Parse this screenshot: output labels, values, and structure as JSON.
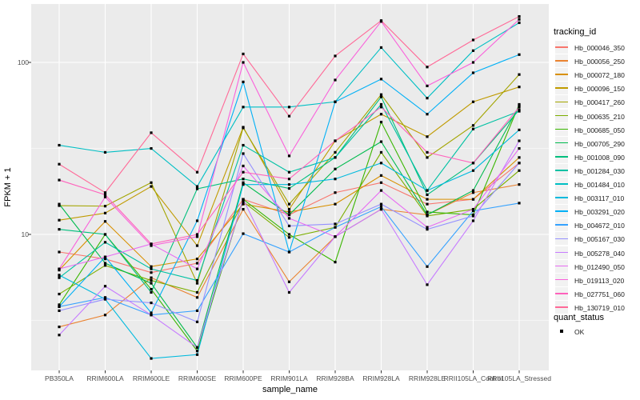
{
  "chart_data": {
    "type": "line",
    "title": "",
    "xlabel": "sample_name",
    "ylabel": "FPKM + 1",
    "y_scale": "log10",
    "y_ticks": [
      {
        "value": 10,
        "label": "10"
      },
      {
        "value": 100,
        "label": "100"
      }
    ],
    "y_minor_gridlines": [
      3.162,
      31.62
    ],
    "ylim": [
      1.6,
      218
    ],
    "grid": true,
    "panel_bg": "#ebebeb",
    "grid_color": "#ffffff",
    "point_color": "#000000",
    "categories": [
      "PB350LA",
      "RRIM600LA",
      "RRIM600LE",
      "RRIM600SE",
      "RRIM600PE",
      "RRIM901LA",
      "RRIM928BA",
      "RRIM928LA",
      "RRIM928LE",
      "RRII105LA_Control",
      "RRII105LA_Stressed"
    ],
    "series": [
      {
        "name": "Hb_000046_350",
        "color": "#F8766D",
        "values": [
          7.9,
          7.2,
          6.0,
          6.8,
          16,
          13,
          17.5,
          20,
          15,
          16,
          26
        ]
      },
      {
        "name": "Hb_000056_250",
        "color": "#EA8331",
        "values": [
          2.9,
          3.4,
          5.6,
          4.3,
          14,
          5.3,
          9.7,
          14,
          13,
          17.5,
          19.5
        ]
      },
      {
        "name": "Hb_000072_180",
        "color": "#D89000",
        "values": [
          6.2,
          11.9,
          6.5,
          7.2,
          15,
          13.5,
          15,
          22,
          16,
          16,
          28
        ]
      },
      {
        "name": "Hb_000096_150",
        "color": "#C09B00",
        "values": [
          12.1,
          13.3,
          19,
          8.6,
          42,
          14,
          35,
          50,
          37,
          59,
          72
        ]
      },
      {
        "name": "Hb_000417_260",
        "color": "#A3A500",
        "values": [
          14.7,
          14.6,
          20,
          5.2,
          41.6,
          15,
          30,
          65,
          28,
          43,
          85
        ]
      },
      {
        "name": "Hb_000635_210",
        "color": "#7CAE00",
        "values": [
          4.5,
          6.6,
          5.4,
          4.6,
          15.5,
          9.6,
          11,
          30,
          12.8,
          14,
          23.5
        ]
      },
      {
        "name": "Hb_000685_050",
        "color": "#39B600",
        "values": [
          3.9,
          10,
          4.8,
          2.1,
          16,
          10,
          6.9,
          45,
          13.5,
          13,
          57
        ]
      },
      {
        "name": "Hb_000705_290",
        "color": "#00BB4E",
        "values": [
          15,
          6.8,
          5.2,
          2.2,
          20,
          13,
          24,
          34.6,
          13,
          18,
          56
        ]
      },
      {
        "name": "Hb_001008_090",
        "color": "#00BF7D",
        "values": [
          10.7,
          10,
          4.6,
          18.4,
          21,
          18.5,
          28,
          63,
          17,
          26,
          53
        ]
      },
      {
        "name": "Hb_001284_030",
        "color": "#00C1A3",
        "values": [
          5.6,
          9,
          6.3,
          5.4,
          33,
          23,
          28,
          57,
          18,
          41,
          52
        ]
      },
      {
        "name": "Hb_001484_010",
        "color": "#00BFC4",
        "values": [
          33,
          30,
          31.6,
          19,
          55,
          55,
          59,
          122,
          62,
          117,
          170
        ]
      },
      {
        "name": "Hb_003117_010",
        "color": "#00BADE",
        "values": [
          5.8,
          4.2,
          1.9,
          2.0,
          19.5,
          19.5,
          21,
          26,
          18,
          23.5,
          40.5
        ]
      },
      {
        "name": "Hb_003291_020",
        "color": "#00B0F6",
        "values": [
          3.8,
          7.4,
          3.5,
          12,
          77,
          7.9,
          59,
          80,
          50,
          87,
          111
        ]
      },
      {
        "name": "Hb_004672_010",
        "color": "#35A2FF",
        "values": [
          3.8,
          4.3,
          3.4,
          3.6,
          10.1,
          7.9,
          11,
          14.5,
          6.5,
          13.7,
          15.2
        ]
      },
      {
        "name": "Hb_005167_030",
        "color": "#9590FF",
        "values": [
          3.6,
          4.2,
          4.0,
          3.1,
          29.5,
          11.2,
          11.5,
          15,
          10.7,
          12.8,
          26
        ]
      },
      {
        "name": "Hb_005278_040",
        "color": "#C77CFF",
        "values": [
          2.6,
          5.0,
          3.4,
          2.2,
          16,
          4.6,
          9.7,
          14,
          5.1,
          12,
          35
        ]
      },
      {
        "name": "Hb_012490_050",
        "color": "#E76BF3",
        "values": [
          6.3,
          7.4,
          8.8,
          6.3,
          25,
          12.4,
          9.7,
          18,
          11,
          14,
          31.6
        ]
      },
      {
        "name": "Hb_019113_020",
        "color": "#FA62DB",
        "values": [
          6.3,
          16.5,
          8.6,
          9.7,
          100,
          28.6,
          79,
          173,
          73,
          100,
          178
        ]
      },
      {
        "name": "Hb_027751_060",
        "color": "#FF62BC",
        "values": [
          20.7,
          17,
          8.8,
          10,
          23,
          21,
          35,
          55,
          30,
          26,
          55
        ]
      },
      {
        "name": "Hb_130719_010",
        "color": "#FF6A98",
        "values": [
          25.6,
          17.5,
          39,
          23,
          112,
          48.7,
          109,
          175,
          94,
          135,
          185
        ]
      }
    ],
    "legend": {
      "color_title": "tracking_id",
      "shape_title": "quant_status",
      "shape_items": [
        {
          "label": "OK"
        }
      ],
      "position": "right"
    }
  }
}
